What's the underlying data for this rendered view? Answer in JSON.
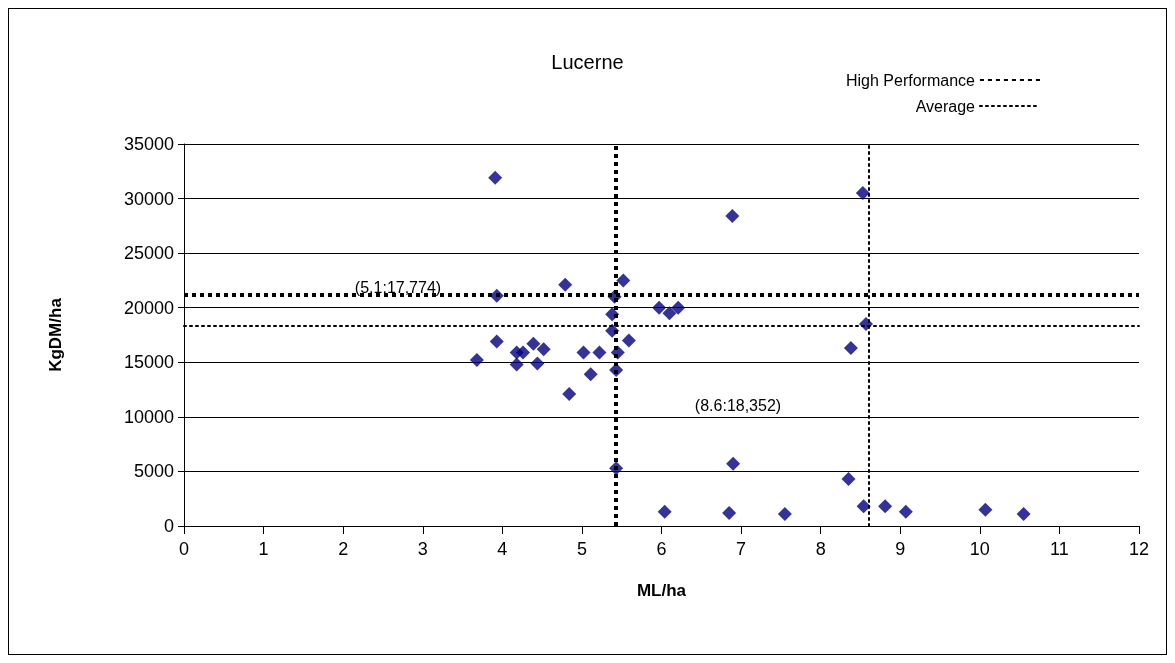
{
  "chart_data": {
    "type": "scatter",
    "title": "Lucerne",
    "xlabel": "ML/ha",
    "ylabel": "KgDM/ha",
    "x": [
      3.91,
      4.79,
      3.93,
      3.93,
      3.68,
      4.18,
      4.26,
      4.18,
      4.39,
      4.52,
      4.44,
      5.02,
      5.22,
      5.11,
      4.84,
      5.52,
      5.41,
      5.38,
      5.38,
      5.45,
      5.43,
      5.59,
      5.97,
      6.1,
      6.21,
      6.89,
      8.53,
      8.57,
      8.38,
      5.43,
      6.9,
      6.04,
      6.85,
      7.55,
      8.35,
      8.54,
      8.81,
      9.07,
      10.07,
      10.55
    ],
    "values": [
      31900,
      22100,
      21100,
      16900,
      15200,
      15900,
      15900,
      14800,
      16700,
      16200,
      14900,
      15900,
      15900,
      13900,
      12100,
      22500,
      21000,
      19400,
      17900,
      15900,
      14300,
      17000,
      20000,
      19500,
      20000,
      28400,
      30500,
      18500,
      16300,
      5300,
      5700,
      1300,
      1200,
      1100,
      4300,
      1800,
      1800,
      1300,
      1500,
      1100
    ],
    "color": "#000080",
    "marker": "diamond",
    "xlim": [
      0,
      12
    ],
    "xticks": [
      0,
      1,
      2,
      3,
      4,
      5,
      6,
      7,
      8,
      9,
      10,
      11,
      12
    ],
    "ylim": [
      0,
      35000
    ],
    "yticks": [
      0,
      5000,
      10000,
      15000,
      20000,
      25000,
      30000,
      35000
    ],
    "grid": "y",
    "legend": "top right",
    "ref_lines": [
      {
        "axis": "y",
        "value": 21200,
        "label": "High Performance",
        "line_style": "dashed",
        "color": "#000000"
      },
      {
        "axis": "x",
        "value": 5.43,
        "line_style": "dashed",
        "color": "#000000"
      },
      {
        "axis": "y",
        "value": 18352,
        "label": "Average",
        "line_style": "dotted",
        "color": "#000000"
      },
      {
        "axis": "x",
        "value": 8.6,
        "line_style": "dotted",
        "color": "#000000"
      }
    ],
    "annotations": [
      "(5.1:17,774)",
      "(8.6:18,352)"
    ]
  }
}
